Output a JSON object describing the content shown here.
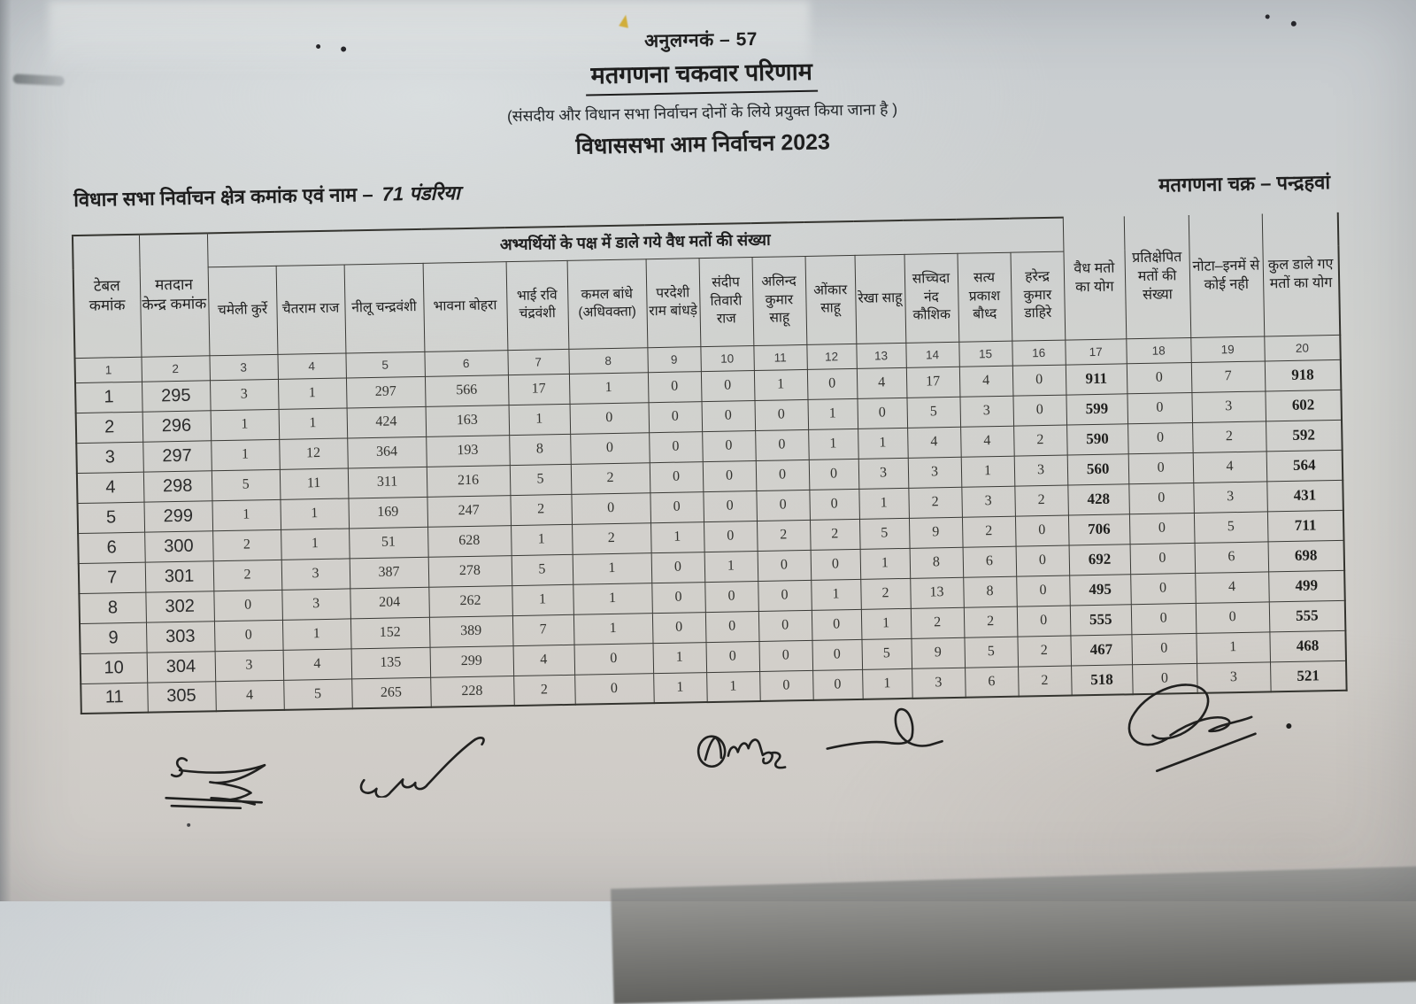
{
  "document": {
    "annexure": "अनुलग्नकं – 57",
    "title": "मतगणना चकवार परिणाम",
    "subtitle": "(संसदीय और विधान सभा निर्वाचन दोनों के लिये प्रयुक्त किया जाना है )",
    "election_line": "विधाससभा आम निर्वाचन 2023",
    "constituency_label": "विधान सभा निर्वाचन क्षेत्र कमांक एवं नाम –",
    "constituency_value": "71 पंडरिया",
    "round_line": "मतगणना चक्र – पन्द्रहवां"
  },
  "table": {
    "header": {
      "table_no": "टेबल कमांक",
      "station_no": "मतदान केन्द्र कमांक",
      "candidates_span": "अभ्यर्थियों के पक्ष में डाले गये वैध मतों की संख्या",
      "candidates": [
        "चमेली कुर्रे",
        "चैतराम राज",
        "नीलू चन्द्रवंशी",
        "भावना बोहरा",
        "भाई रवि चंद्रवंशी",
        "कमल बांधे (अधिवक्ता)",
        "परदेशी राम बांधड़े",
        "संदीप तिवारी राज",
        "अलिन्द कुमार साहू",
        "ओंकार साहू",
        "रेखा साहू",
        "सच्चिदा नंद कौशिक",
        "सत्य प्रकाश बौध्द",
        "हरेन्द्र कुमार डाहिरे"
      ],
      "valid_total": "वैध मतो का योग",
      "rejected": "प्रतिक्षेपित मतों की संख्या",
      "nota": "नोटा–इनमें से कोई नही",
      "grand_total": "कुल डाले गए मतों का योग"
    },
    "column_numbers": [
      "1",
      "2",
      "3",
      "4",
      "5",
      "6",
      "7",
      "8",
      "9",
      "10",
      "11",
      "12",
      "13",
      "14",
      "15",
      "16",
      "17",
      "18",
      "19",
      "20"
    ],
    "rows": [
      [
        "1",
        "295",
        "3",
        "1",
        "297",
        "566",
        "17",
        "1",
        "0",
        "0",
        "1",
        "0",
        "4",
        "17",
        "4",
        "0",
        "911",
        "0",
        "7",
        "918"
      ],
      [
        "2",
        "296",
        "1",
        "1",
        "424",
        "163",
        "1",
        "0",
        "0",
        "0",
        "0",
        "1",
        "0",
        "5",
        "3",
        "0",
        "599",
        "0",
        "3",
        "602"
      ],
      [
        "3",
        "297",
        "1",
        "12",
        "364",
        "193",
        "8",
        "0",
        "0",
        "0",
        "0",
        "1",
        "1",
        "4",
        "4",
        "2",
        "590",
        "0",
        "2",
        "592"
      ],
      [
        "4",
        "298",
        "5",
        "11",
        "311",
        "216",
        "5",
        "2",
        "0",
        "0",
        "0",
        "0",
        "3",
        "3",
        "1",
        "3",
        "560",
        "0",
        "4",
        "564"
      ],
      [
        "5",
        "299",
        "1",
        "1",
        "169",
        "247",
        "2",
        "0",
        "0",
        "0",
        "0",
        "0",
        "1",
        "2",
        "3",
        "2",
        "428",
        "0",
        "3",
        "431"
      ],
      [
        "6",
        "300",
        "2",
        "1",
        "51",
        "628",
        "1",
        "2",
        "1",
        "0",
        "2",
        "2",
        "5",
        "9",
        "2",
        "0",
        "706",
        "0",
        "5",
        "711"
      ],
      [
        "7",
        "301",
        "2",
        "3",
        "387",
        "278",
        "5",
        "1",
        "0",
        "1",
        "0",
        "0",
        "1",
        "8",
        "6",
        "0",
        "692",
        "0",
        "6",
        "698"
      ],
      [
        "8",
        "302",
        "0",
        "3",
        "204",
        "262",
        "1",
        "1",
        "0",
        "0",
        "0",
        "1",
        "2",
        "13",
        "8",
        "0",
        "495",
        "0",
        "4",
        "499"
      ],
      [
        "9",
        "303",
        "0",
        "1",
        "152",
        "389",
        "7",
        "1",
        "0",
        "0",
        "0",
        "0",
        "1",
        "2",
        "2",
        "0",
        "555",
        "0",
        "0",
        "555"
      ],
      [
        "10",
        "304",
        "3",
        "4",
        "135",
        "299",
        "4",
        "0",
        "1",
        "0",
        "0",
        "0",
        "5",
        "9",
        "5",
        "2",
        "467",
        "0",
        "1",
        "468"
      ],
      [
        "11",
        "305",
        "4",
        "5",
        "265",
        "228",
        "2",
        "0",
        "1",
        "1",
        "0",
        "0",
        "1",
        "3",
        "6",
        "2",
        "518",
        "0",
        "3",
        "521"
      ]
    ]
  }
}
